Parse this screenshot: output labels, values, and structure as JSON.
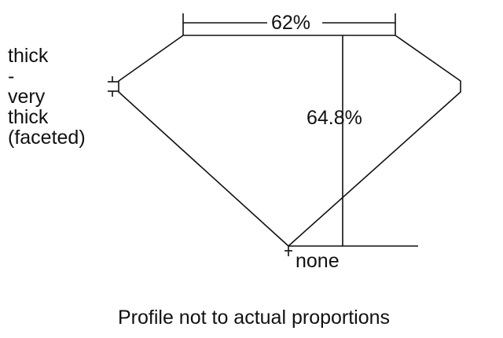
{
  "table_label": "62%",
  "depth_label": "64.8%",
  "culet_label": "none",
  "girdle_label_lines": [
    "thick",
    "-",
    "very",
    "thick",
    "(faceted)"
  ],
  "caption": "Profile not to actual proportions",
  "line_color": "#111111"
}
